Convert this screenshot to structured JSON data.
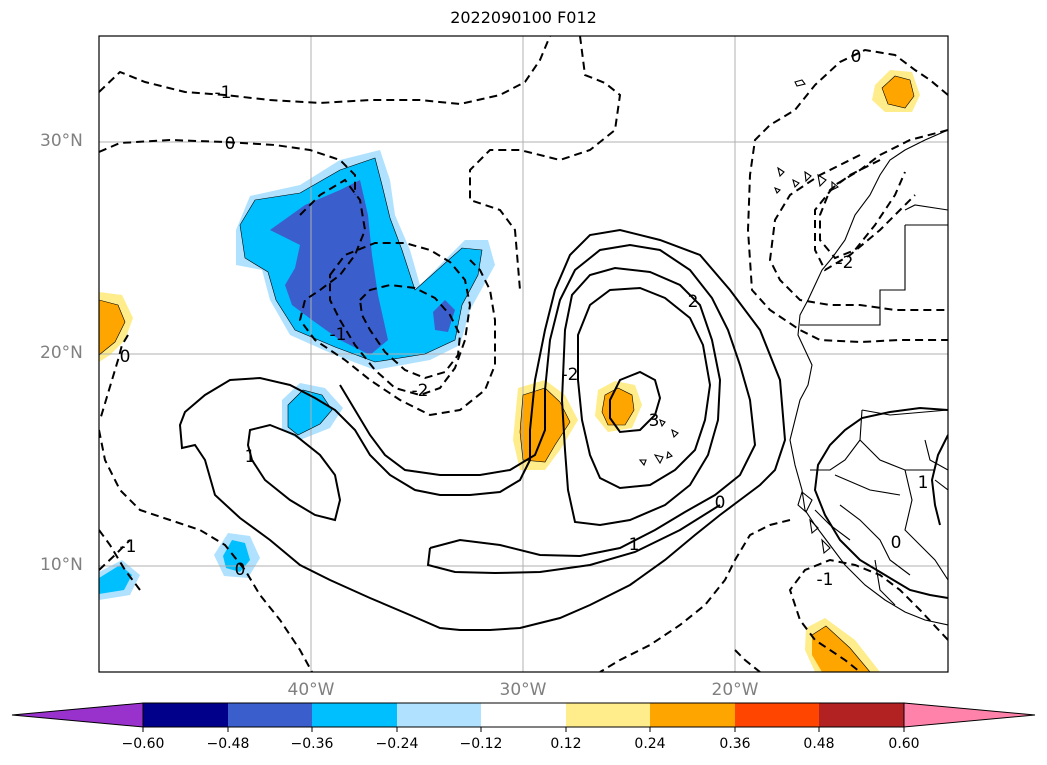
{
  "title": "2022090100 F012",
  "axes": {
    "lat_labels": [
      "30°N",
      "20°N",
      "10°N"
    ],
    "lon_labels": [
      "40°W",
      "30°W",
      "20°W"
    ]
  },
  "contour_labels": [
    "-1",
    "0",
    "0",
    "-1",
    "-2",
    "1",
    "-2",
    "2",
    "3",
    "0",
    "1",
    "0",
    "-1",
    "0",
    "-1",
    "-2",
    "0",
    "1"
  ],
  "colorbar": {
    "ticks": [
      "−0.60",
      "−0.48",
      "−0.36",
      "−0.24",
      "−0.12",
      "0.12",
      "0.24",
      "0.36",
      "0.48",
      "0.60"
    ],
    "colors": [
      "#9932cc",
      "#00008b",
      "#3a5fcd",
      "#00bfff",
      "#b0e2ff",
      "#ffffff",
      "#ffec8b",
      "#ffa500",
      "#ff4500",
      "#b22222",
      "#ff82ab"
    ],
    "extend": "both"
  },
  "shade_colors": {
    "neg_light": "#b0e2ff",
    "neg_mid": "#00bfff",
    "neg_dark": "#3a5fcd",
    "pos_light": "#ffec8b",
    "pos_mid": "#ffa500"
  },
  "grid": true
}
